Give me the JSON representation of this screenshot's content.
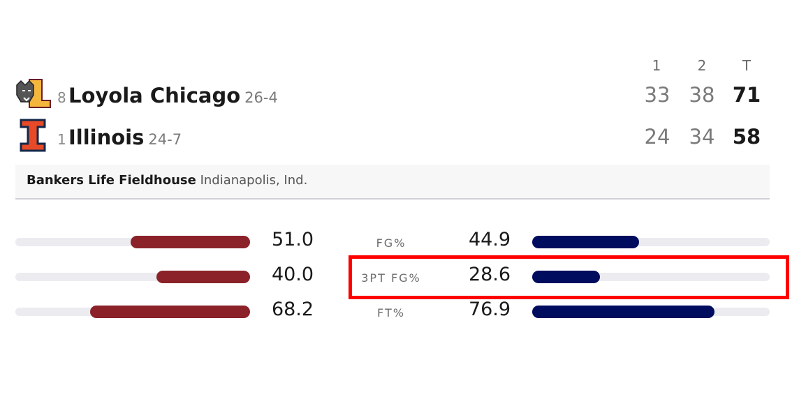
{
  "periods": [
    "1",
    "2",
    "T"
  ],
  "teams": [
    {
      "rank": 8,
      "name": "Loyola Chicago",
      "record": "26-4",
      "scores": [
        33,
        38,
        71
      ]
    },
    {
      "rank": 1,
      "name": "Illinois",
      "record": "24-7",
      "scores": [
        24,
        34,
        58
      ]
    }
  ],
  "venue": {
    "name": "Bankers Life Fieldhouse",
    "location": "Indianapolis, Ind."
  },
  "stats": [
    {
      "label": "FG%",
      "left": {
        "value": 51.0,
        "label": "51.0"
      },
      "right": {
        "value": 44.9,
        "label": "44.9"
      }
    },
    {
      "label": "3PT FG%",
      "left": {
        "value": 40.0,
        "label": "40.0"
      },
      "right": {
        "value": 28.6,
        "label": "28.6"
      }
    },
    {
      "label": "FT%",
      "left": {
        "value": 68.2,
        "label": "68.2"
      },
      "right": {
        "value": 76.9,
        "label": "76.9"
      }
    }
  ]
}
